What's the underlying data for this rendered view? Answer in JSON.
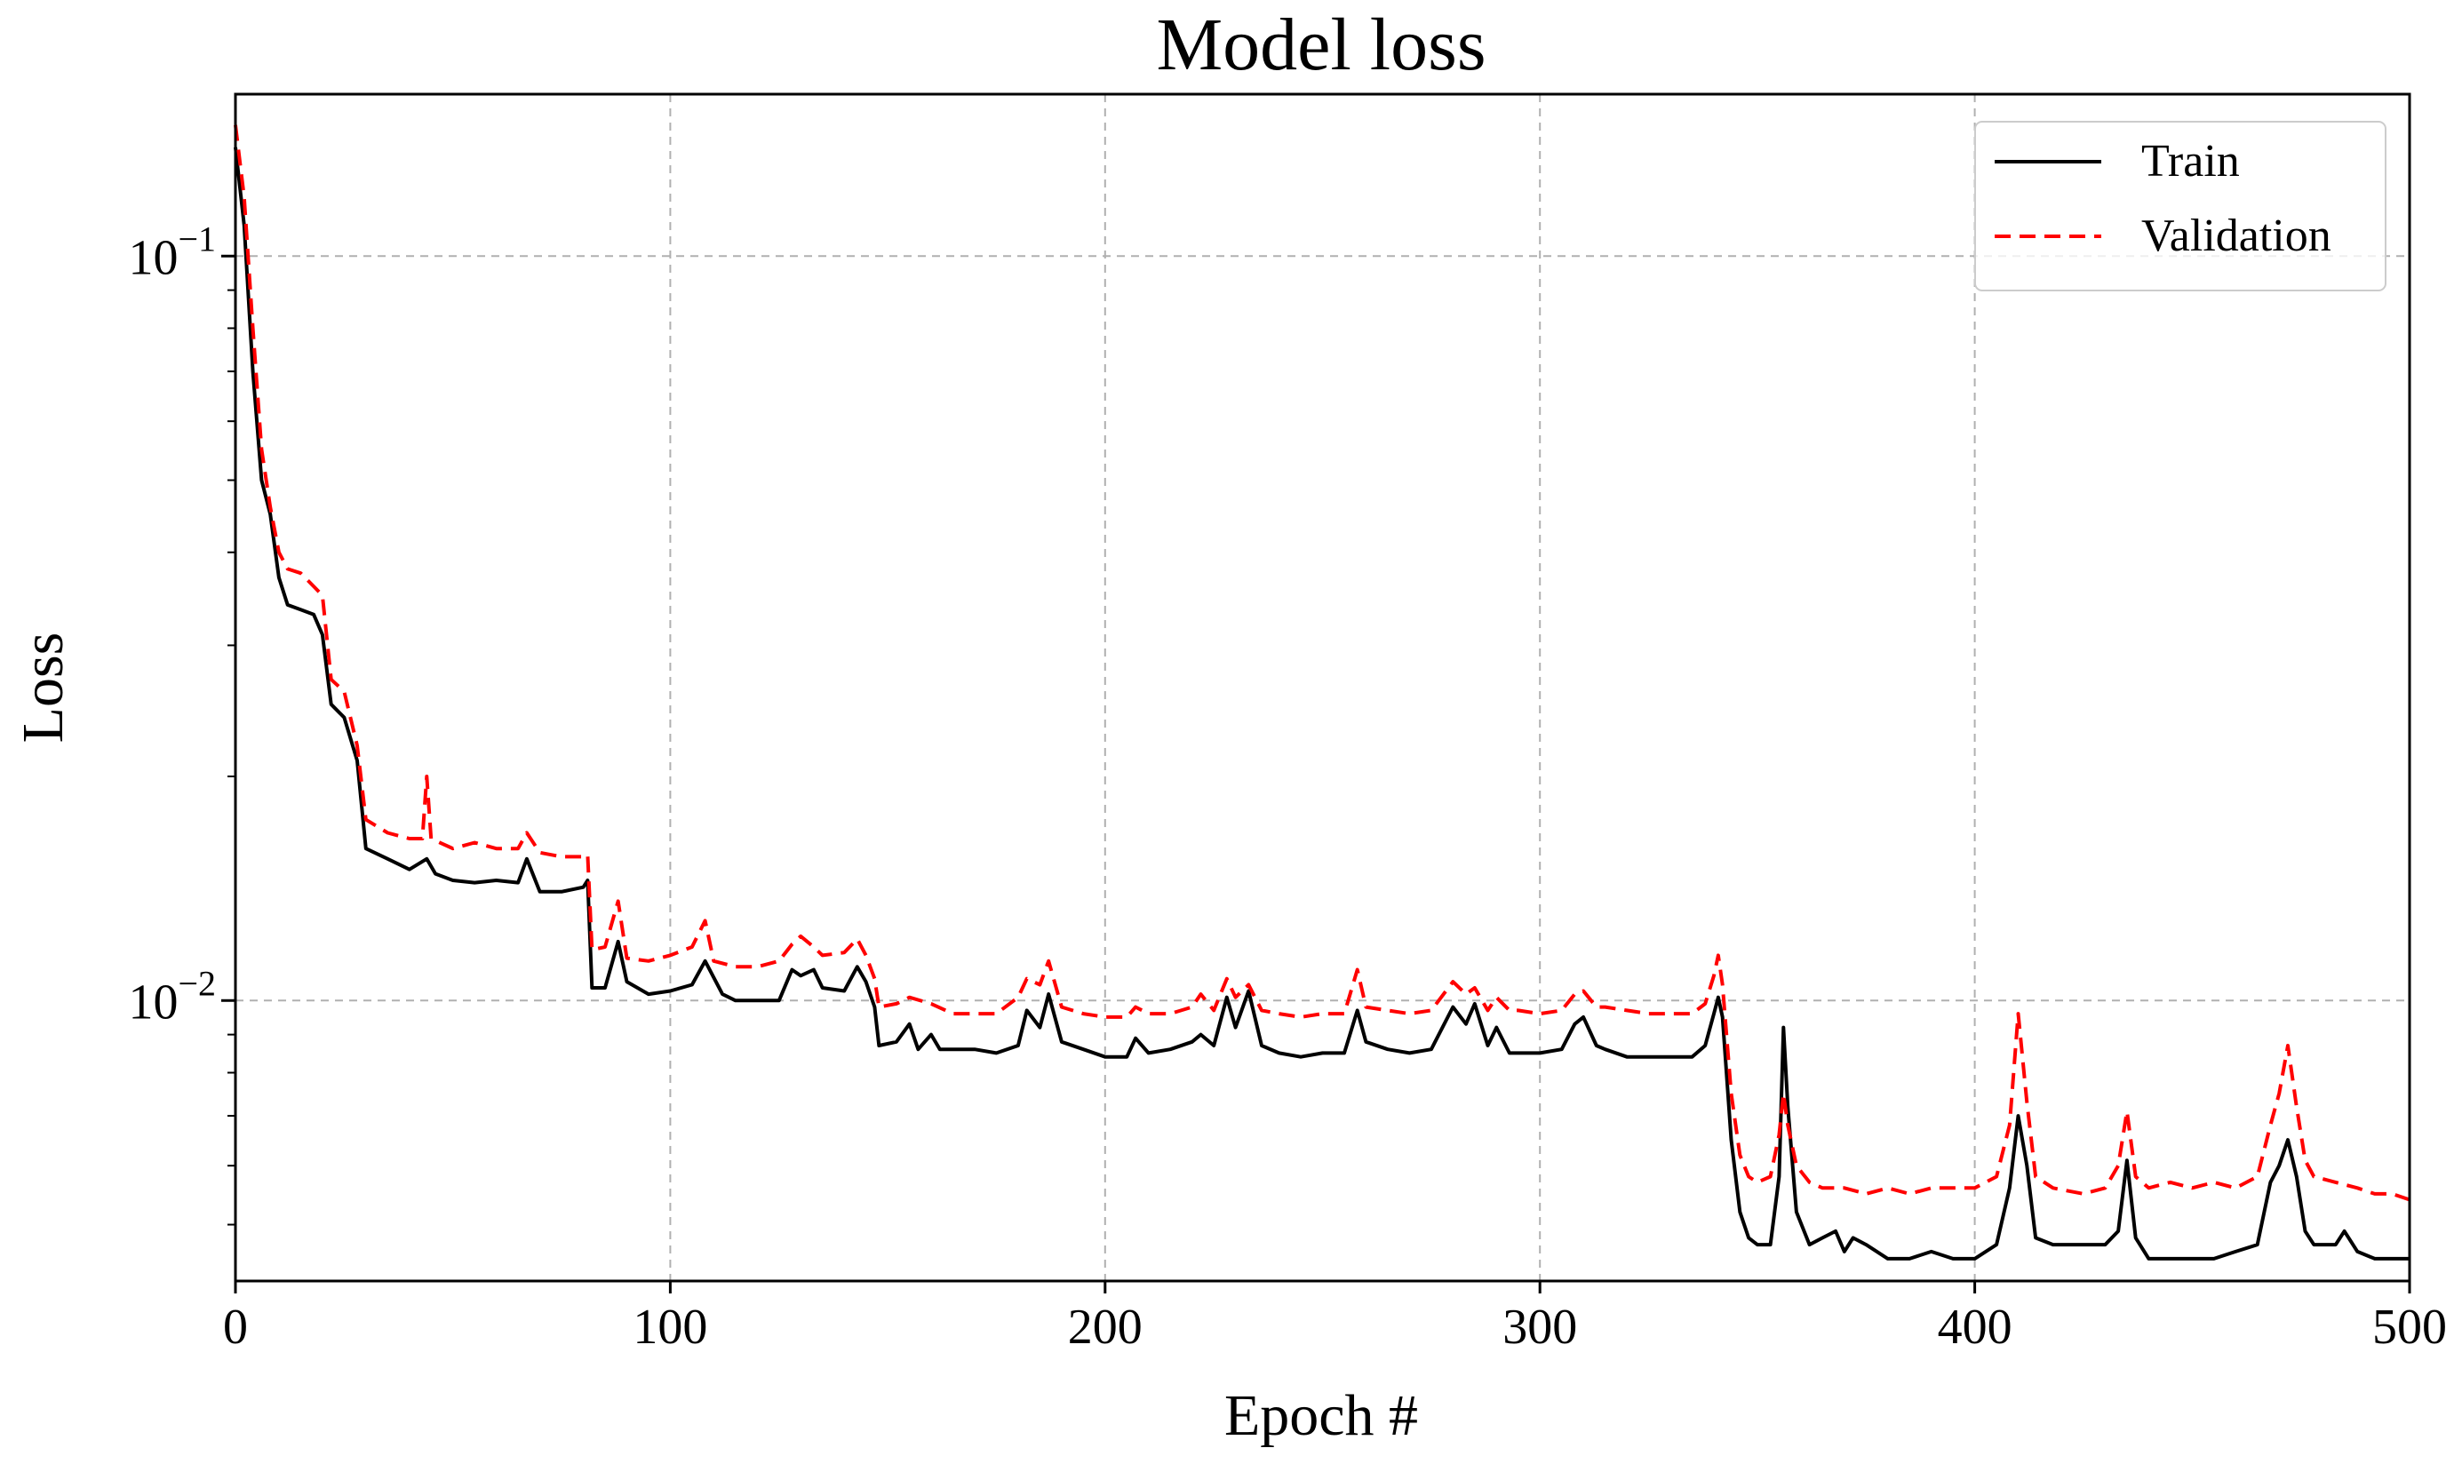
{
  "chart_data": {
    "type": "line",
    "title": "Model loss",
    "xlabel": "Epoch #",
    "ylabel": "Loss",
    "xlim": [
      0,
      500
    ],
    "ylim": [
      0.0042,
      0.165
    ],
    "yscale": "log",
    "grid": true,
    "legend_position": "top-right",
    "x_ticks": [
      "0",
      "100",
      "200",
      "300",
      "400",
      "500"
    ],
    "y_ticks": [
      {
        "base": "10",
        "exp": "−1",
        "value": 0.1
      },
      {
        "base": "10",
        "exp": "−2",
        "value": 0.01
      }
    ],
    "series": [
      {
        "name": "Train",
        "color": "#000000",
        "dash": "solid",
        "points": [
          [
            0,
            0.14
          ],
          [
            2,
            0.11
          ],
          [
            4,
            0.07
          ],
          [
            6,
            0.05
          ],
          [
            8,
            0.045
          ],
          [
            10,
            0.037
          ],
          [
            12,
            0.034
          ],
          [
            15,
            0.0335
          ],
          [
            18,
            0.033
          ],
          [
            20,
            0.031
          ],
          [
            22,
            0.025
          ],
          [
            25,
            0.024
          ],
          [
            28,
            0.021
          ],
          [
            30,
            0.016
          ],
          [
            35,
            0.0155
          ],
          [
            40,
            0.015
          ],
          [
            44,
            0.0155
          ],
          [
            46,
            0.0148
          ],
          [
            50,
            0.0145
          ],
          [
            55,
            0.0144
          ],
          [
            60,
            0.0145
          ],
          [
            65,
            0.0144
          ],
          [
            67,
            0.0155
          ],
          [
            70,
            0.014
          ],
          [
            75,
            0.014
          ],
          [
            80,
            0.0142
          ],
          [
            81,
            0.0145
          ],
          [
            82,
            0.0104
          ],
          [
            85,
            0.0104
          ],
          [
            88,
            0.012
          ],
          [
            90,
            0.0106
          ],
          [
            95,
            0.0102
          ],
          [
            100,
            0.0103
          ],
          [
            105,
            0.0105
          ],
          [
            108,
            0.0113
          ],
          [
            112,
            0.0102
          ],
          [
            115,
            0.01
          ],
          [
            120,
            0.01
          ],
          [
            125,
            0.01
          ],
          [
            128,
            0.011
          ],
          [
            130,
            0.0108
          ],
          [
            133,
            0.011
          ],
          [
            135,
            0.0104
          ],
          [
            140,
            0.0103
          ],
          [
            143,
            0.0111
          ],
          [
            145,
            0.0106
          ],
          [
            147,
            0.0098
          ],
          [
            148,
            0.0087
          ],
          [
            152,
            0.0088
          ],
          [
            155,
            0.0093
          ],
          [
            157,
            0.0086
          ],
          [
            160,
            0.009
          ],
          [
            162,
            0.0086
          ],
          [
            170,
            0.0086
          ],
          [
            175,
            0.0085
          ],
          [
            180,
            0.0087
          ],
          [
            182,
            0.0097
          ],
          [
            185,
            0.0092
          ],
          [
            187,
            0.0102
          ],
          [
            190,
            0.0088
          ],
          [
            195,
            0.0086
          ],
          [
            200,
            0.0084
          ],
          [
            205,
            0.0084
          ],
          [
            207,
            0.0089
          ],
          [
            210,
            0.0085
          ],
          [
            215,
            0.0086
          ],
          [
            220,
            0.0088
          ],
          [
            222,
            0.009
          ],
          [
            225,
            0.0087
          ],
          [
            228,
            0.0101
          ],
          [
            230,
            0.0092
          ],
          [
            233,
            0.0103
          ],
          [
            236,
            0.0087
          ],
          [
            240,
            0.0085
          ],
          [
            245,
            0.0084
          ],
          [
            250,
            0.0085
          ],
          [
            255,
            0.0085
          ],
          [
            258,
            0.0097
          ],
          [
            260,
            0.0088
          ],
          [
            265,
            0.0086
          ],
          [
            270,
            0.0085
          ],
          [
            275,
            0.0086
          ],
          [
            280,
            0.0098
          ],
          [
            283,
            0.0093
          ],
          [
            285,
            0.0099
          ],
          [
            288,
            0.0087
          ],
          [
            290,
            0.0092
          ],
          [
            293,
            0.0085
          ],
          [
            295,
            0.0085
          ],
          [
            300,
            0.0085
          ],
          [
            305,
            0.0086
          ],
          [
            308,
            0.0093
          ],
          [
            310,
            0.0095
          ],
          [
            313,
            0.0087
          ],
          [
            315,
            0.0086
          ],
          [
            320,
            0.0084
          ],
          [
            325,
            0.0084
          ],
          [
            330,
            0.0084
          ],
          [
            335,
            0.0084
          ],
          [
            338,
            0.0087
          ],
          [
            340,
            0.0096
          ],
          [
            341,
            0.0101
          ],
          [
            342,
            0.0095
          ],
          [
            344,
            0.0065
          ],
          [
            346,
            0.0052
          ],
          [
            348,
            0.0048
          ],
          [
            350,
            0.0047
          ],
          [
            353,
            0.0047
          ],
          [
            355,
            0.0058
          ],
          [
            356,
            0.0092
          ],
          [
            357,
            0.0072
          ],
          [
            359,
            0.0052
          ],
          [
            362,
            0.0047
          ],
          [
            365,
            0.0048
          ],
          [
            368,
            0.0049
          ],
          [
            370,
            0.0046
          ],
          [
            372,
            0.0048
          ],
          [
            375,
            0.0047
          ],
          [
            380,
            0.0045
          ],
          [
            385,
            0.0045
          ],
          [
            390,
            0.0046
          ],
          [
            395,
            0.0045
          ],
          [
            400,
            0.0045
          ],
          [
            405,
            0.0047
          ],
          [
            408,
            0.0056
          ],
          [
            410,
            0.007
          ],
          [
            412,
            0.006
          ],
          [
            414,
            0.0048
          ],
          [
            418,
            0.0047
          ],
          [
            425,
            0.0047
          ],
          [
            430,
            0.0047
          ],
          [
            433,
            0.0049
          ],
          [
            435,
            0.0061
          ],
          [
            437,
            0.0048
          ],
          [
            440,
            0.0045
          ],
          [
            445,
            0.0045
          ],
          [
            450,
            0.0045
          ],
          [
            455,
            0.0045
          ],
          [
            460,
            0.0046
          ],
          [
            465,
            0.0047
          ],
          [
            468,
            0.0057
          ],
          [
            470,
            0.006
          ],
          [
            472,
            0.0065
          ],
          [
            474,
            0.0058
          ],
          [
            476,
            0.0049
          ],
          [
            478,
            0.0047
          ],
          [
            483,
            0.0047
          ],
          [
            485,
            0.0049
          ],
          [
            488,
            0.0046
          ],
          [
            492,
            0.0045
          ],
          [
            496,
            0.0045
          ],
          [
            500,
            0.0045
          ]
        ]
      },
      {
        "name": "Validation",
        "color": "#ff0000",
        "dash": "dashed",
        "points": [
          [
            0,
            0.15
          ],
          [
            2,
            0.12
          ],
          [
            4,
            0.08
          ],
          [
            6,
            0.055
          ],
          [
            8,
            0.046
          ],
          [
            10,
            0.04
          ],
          [
            12,
            0.038
          ],
          [
            15,
            0.0375
          ],
          [
            18,
            0.036
          ],
          [
            20,
            0.035
          ],
          [
            22,
            0.027
          ],
          [
            25,
            0.026
          ],
          [
            28,
            0.022
          ],
          [
            30,
            0.0175
          ],
          [
            35,
            0.0168
          ],
          [
            40,
            0.0165
          ],
          [
            43,
            0.0165
          ],
          [
            44,
            0.02
          ],
          [
            45,
            0.0165
          ],
          [
            50,
            0.016
          ],
          [
            55,
            0.0163
          ],
          [
            60,
            0.016
          ],
          [
            65,
            0.016
          ],
          [
            67,
            0.0168
          ],
          [
            70,
            0.0158
          ],
          [
            75,
            0.0156
          ],
          [
            80,
            0.0156
          ],
          [
            81,
            0.0157
          ],
          [
            82,
            0.0117
          ],
          [
            85,
            0.0118
          ],
          [
            88,
            0.0136
          ],
          [
            90,
            0.0114
          ],
          [
            95,
            0.0113
          ],
          [
            100,
            0.0115
          ],
          [
            105,
            0.0118
          ],
          [
            108,
            0.0128
          ],
          [
            110,
            0.0113
          ],
          [
            115,
            0.0111
          ],
          [
            120,
            0.0111
          ],
          [
            125,
            0.0113
          ],
          [
            128,
            0.0119
          ],
          [
            130,
            0.0122
          ],
          [
            133,
            0.0118
          ],
          [
            135,
            0.0115
          ],
          [
            140,
            0.0116
          ],
          [
            143,
            0.0121
          ],
          [
            145,
            0.0115
          ],
          [
            147,
            0.0107
          ],
          [
            148,
            0.0098
          ],
          [
            152,
            0.0099
          ],
          [
            155,
            0.0101
          ],
          [
            160,
            0.0099
          ],
          [
            165,
            0.0096
          ],
          [
            170,
            0.0096
          ],
          [
            175,
            0.0096
          ],
          [
            180,
            0.0101
          ],
          [
            182,
            0.0107
          ],
          [
            185,
            0.0105
          ],
          [
            187,
            0.0113
          ],
          [
            190,
            0.0098
          ],
          [
            195,
            0.0096
          ],
          [
            200,
            0.0095
          ],
          [
            205,
            0.0095
          ],
          [
            207,
            0.0098
          ],
          [
            210,
            0.0096
          ],
          [
            215,
            0.0096
          ],
          [
            220,
            0.0098
          ],
          [
            222,
            0.0102
          ],
          [
            225,
            0.0097
          ],
          [
            228,
            0.0107
          ],
          [
            230,
            0.0101
          ],
          [
            233,
            0.0105
          ],
          [
            236,
            0.0097
          ],
          [
            240,
            0.0096
          ],
          [
            245,
            0.0095
          ],
          [
            250,
            0.0096
          ],
          [
            255,
            0.0096
          ],
          [
            258,
            0.011
          ],
          [
            260,
            0.0098
          ],
          [
            265,
            0.0097
          ],
          [
            270,
            0.0096
          ],
          [
            275,
            0.0097
          ],
          [
            280,
            0.0106
          ],
          [
            283,
            0.0102
          ],
          [
            285,
            0.0104
          ],
          [
            288,
            0.0097
          ],
          [
            290,
            0.0101
          ],
          [
            293,
            0.0097
          ],
          [
            295,
            0.0097
          ],
          [
            300,
            0.0096
          ],
          [
            305,
            0.0097
          ],
          [
            308,
            0.0102
          ],
          [
            310,
            0.0103
          ],
          [
            313,
            0.0098
          ],
          [
            315,
            0.0098
          ],
          [
            320,
            0.0097
          ],
          [
            325,
            0.0096
          ],
          [
            330,
            0.0096
          ],
          [
            335,
            0.0096
          ],
          [
            338,
            0.0099
          ],
          [
            340,
            0.0108
          ],
          [
            341,
            0.0115
          ],
          [
            342,
            0.0105
          ],
          [
            344,
            0.0075
          ],
          [
            346,
            0.0062
          ],
          [
            348,
            0.0058
          ],
          [
            350,
            0.0057
          ],
          [
            353,
            0.0058
          ],
          [
            355,
            0.0066
          ],
          [
            356,
            0.0075
          ],
          [
            357,
            0.0068
          ],
          [
            359,
            0.006
          ],
          [
            362,
            0.0057
          ],
          [
            365,
            0.0056
          ],
          [
            370,
            0.0056
          ],
          [
            375,
            0.0055
          ],
          [
            380,
            0.0056
          ],
          [
            385,
            0.0055
          ],
          [
            390,
            0.0056
          ],
          [
            395,
            0.0056
          ],
          [
            400,
            0.0056
          ],
          [
            405,
            0.0058
          ],
          [
            408,
            0.0068
          ],
          [
            410,
            0.0096
          ],
          [
            412,
            0.0073
          ],
          [
            414,
            0.0058
          ],
          [
            418,
            0.0056
          ],
          [
            425,
            0.0055
          ],
          [
            430,
            0.0056
          ],
          [
            433,
            0.006
          ],
          [
            435,
            0.0071
          ],
          [
            437,
            0.0058
          ],
          [
            440,
            0.0056
          ],
          [
            445,
            0.0057
          ],
          [
            450,
            0.0056
          ],
          [
            455,
            0.0057
          ],
          [
            460,
            0.0056
          ],
          [
            465,
            0.0058
          ],
          [
            468,
            0.0068
          ],
          [
            470,
            0.0075
          ],
          [
            472,
            0.0087
          ],
          [
            474,
            0.0072
          ],
          [
            476,
            0.0061
          ],
          [
            478,
            0.0058
          ],
          [
            483,
            0.0057
          ],
          [
            488,
            0.0056
          ],
          [
            492,
            0.0055
          ],
          [
            496,
            0.0055
          ],
          [
            500,
            0.0054
          ]
        ]
      }
    ]
  }
}
